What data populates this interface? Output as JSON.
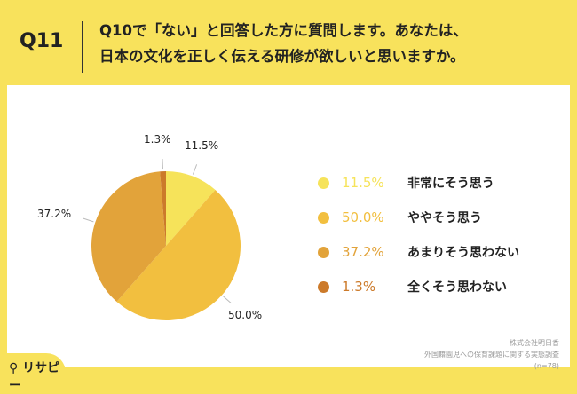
{
  "header": {
    "qnum": "Q11",
    "title_line1": "Q10で「ない」と回答した方に質問します。あなたは、",
    "title_line2": "日本の文化を正しく伝える研修が欲しいと思いますか。"
  },
  "chart_data": {
    "type": "pie",
    "categories": [
      "非常にそう思う",
      "ややそう思う",
      "あまりそう思わない",
      "全くそう思わない"
    ],
    "values": [
      11.5,
      50.0,
      37.2,
      1.3
    ],
    "labels": [
      "11.5%",
      "50.0%",
      "37.2%",
      "1.3%"
    ],
    "colors": [
      "#f6e35a",
      "#f2bf3f",
      "#e2a33a",
      "#cc7a2a"
    ],
    "legend": "right"
  },
  "source": {
    "line1": "株式会社明日香",
    "line2": "外国籍園児への保育課題に関する実態調査",
    "line3": "(n=78)"
  },
  "logo": "リサピー"
}
